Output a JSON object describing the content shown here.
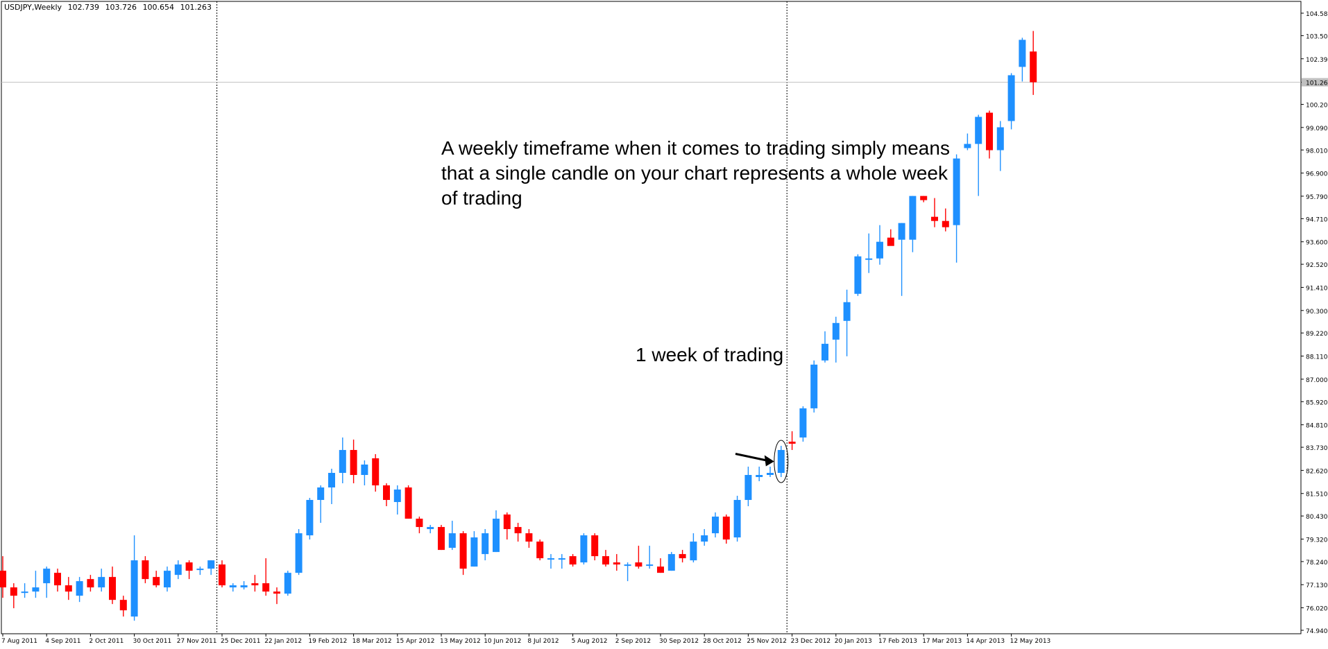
{
  "header": {
    "symbol": "USDJPY,Weekly",
    "open": "102.739",
    "high": "103.726",
    "low": "100.654",
    "close": "101.263"
  },
  "annotations": {
    "caption": "A weekly timeframe when it comes to trading simply means that a single candle on your chart represents a whole week of trading",
    "arrow_label": "1 week of trading"
  },
  "colors": {
    "bull": "#1e90ff",
    "bear": "#ff0000",
    "background": "#ffffff",
    "axis": "#000000",
    "current_price_line": "#c0c0c0"
  },
  "chart_data": {
    "type": "candlestick",
    "series_name": "USDJPY,Weekly",
    "ylim": [
      74.94,
      104.58
    ],
    "y_ticks": [
      "104.580",
      "103.500",
      "102.390",
      "101.263",
      "100.200",
      "99.090",
      "98.010",
      "96.900",
      "95.790",
      "94.710",
      "93.600",
      "92.520",
      "91.410",
      "90.300",
      "89.220",
      "88.110",
      "87.000",
      "85.920",
      "84.810",
      "83.730",
      "82.620",
      "81.510",
      "80.430",
      "79.320",
      "78.240",
      "77.130",
      "76.020",
      "74.940"
    ],
    "current_price": "101.263",
    "x_tick_labels": [
      "7 Aug 2011",
      "4 Sep 2011",
      "2 Oct 2011",
      "30 Oct 2011",
      "27 Nov 2011",
      "25 Dec 2011",
      "22 Jan 2012",
      "19 Feb 2012",
      "18 Mar 2012",
      "15 Apr 2012",
      "13 May 2012",
      "10 Jun 2012",
      "8 Jul 2012",
      "5 Aug 2012",
      "2 Sep 2012",
      "30 Sep 2012",
      "28 Oct 2012",
      "25 Nov 2012",
      "23 Dec 2012",
      "20 Jan 2013",
      "17 Feb 2013",
      "17 Mar 2013",
      "14 Apr 2013",
      "12 May 2013"
    ],
    "x_tick_label_step": 4,
    "period_separators": [
      "25 Dec 2011",
      "23 Dec 2012"
    ],
    "highlighted_candle": "23 Dec 2012",
    "candles": [
      {
        "o": 77.8,
        "h": 78.5,
        "l": 76.5,
        "c": 77.0
      },
      {
        "o": 77.0,
        "h": 77.2,
        "l": 76.0,
        "c": 76.6
      },
      {
        "o": 76.8,
        "h": 77.2,
        "l": 76.5,
        "c": 76.8
      },
      {
        "o": 76.8,
        "h": 77.8,
        "l": 76.5,
        "c": 77.0
      },
      {
        "o": 77.2,
        "h": 78.0,
        "l": 76.5,
        "c": 77.9
      },
      {
        "o": 77.7,
        "h": 77.9,
        "l": 76.8,
        "c": 77.1
      },
      {
        "o": 77.1,
        "h": 77.5,
        "l": 76.4,
        "c": 76.8
      },
      {
        "o": 76.6,
        "h": 77.5,
        "l": 76.3,
        "c": 77.3
      },
      {
        "o": 77.4,
        "h": 77.6,
        "l": 76.8,
        "c": 77.0
      },
      {
        "o": 77.0,
        "h": 77.9,
        "l": 76.8,
        "c": 77.5
      },
      {
        "o": 77.5,
        "h": 78.0,
        "l": 76.2,
        "c": 76.4
      },
      {
        "o": 76.4,
        "h": 76.6,
        "l": 75.6,
        "c": 75.9
      },
      {
        "o": 75.6,
        "h": 79.5,
        "l": 75.4,
        "c": 78.3
      },
      {
        "o": 78.3,
        "h": 78.5,
        "l": 77.2,
        "c": 77.4
      },
      {
        "o": 77.5,
        "h": 77.8,
        "l": 77.0,
        "c": 77.1
      },
      {
        "o": 77.0,
        "h": 78.0,
        "l": 76.8,
        "c": 77.8
      },
      {
        "o": 77.6,
        "h": 78.3,
        "l": 77.4,
        "c": 78.1
      },
      {
        "o": 78.2,
        "h": 78.3,
        "l": 77.4,
        "c": 77.8
      },
      {
        "o": 77.9,
        "h": 78.0,
        "l": 77.6,
        "c": 77.9
      },
      {
        "o": 77.9,
        "h": 78.3,
        "l": 77.6,
        "c": 78.3
      },
      {
        "o": 78.1,
        "h": 78.3,
        "l": 77.0,
        "c": 77.1
      },
      {
        "o": 77.0,
        "h": 77.2,
        "l": 76.8,
        "c": 77.1
      },
      {
        "o": 77.0,
        "h": 77.3,
        "l": 76.9,
        "c": 77.1
      },
      {
        "o": 77.2,
        "h": 77.6,
        "l": 76.8,
        "c": 77.1
      },
      {
        "o": 77.2,
        "h": 78.4,
        "l": 76.6,
        "c": 76.8
      },
      {
        "o": 76.8,
        "h": 77.0,
        "l": 76.2,
        "c": 76.7
      },
      {
        "o": 76.7,
        "h": 77.8,
        "l": 76.6,
        "c": 77.7
      },
      {
        "o": 77.7,
        "h": 79.8,
        "l": 77.6,
        "c": 79.6
      },
      {
        "o": 79.5,
        "h": 81.3,
        "l": 79.3,
        "c": 81.2
      },
      {
        "o": 81.2,
        "h": 81.9,
        "l": 80.1,
        "c": 81.8
      },
      {
        "o": 81.8,
        "h": 82.7,
        "l": 81.0,
        "c": 82.5
      },
      {
        "o": 82.5,
        "h": 84.2,
        "l": 82.0,
        "c": 83.6
      },
      {
        "o": 83.6,
        "h": 84.1,
        "l": 82.0,
        "c": 82.4
      },
      {
        "o": 82.4,
        "h": 83.1,
        "l": 81.9,
        "c": 82.9
      },
      {
        "o": 83.2,
        "h": 83.4,
        "l": 81.6,
        "c": 81.9
      },
      {
        "o": 81.9,
        "h": 82.0,
        "l": 80.9,
        "c": 81.2
      },
      {
        "o": 81.1,
        "h": 81.9,
        "l": 80.5,
        "c": 81.7
      },
      {
        "o": 81.8,
        "h": 81.9,
        "l": 80.3,
        "c": 80.3
      },
      {
        "o": 80.3,
        "h": 80.4,
        "l": 79.6,
        "c": 79.9
      },
      {
        "o": 79.8,
        "h": 80.0,
        "l": 79.6,
        "c": 79.9
      },
      {
        "o": 79.9,
        "h": 80.0,
        "l": 78.8,
        "c": 78.8
      },
      {
        "o": 78.9,
        "h": 80.2,
        "l": 78.8,
        "c": 79.6
      },
      {
        "o": 79.6,
        "h": 79.7,
        "l": 77.6,
        "c": 77.9
      },
      {
        "o": 78.0,
        "h": 79.7,
        "l": 78.0,
        "c": 79.4
      },
      {
        "o": 78.6,
        "h": 79.8,
        "l": 78.3,
        "c": 79.6
      },
      {
        "o": 78.7,
        "h": 80.7,
        "l": 78.7,
        "c": 80.3
      },
      {
        "o": 80.5,
        "h": 80.6,
        "l": 79.3,
        "c": 79.8
      },
      {
        "o": 79.9,
        "h": 80.1,
        "l": 79.2,
        "c": 79.6
      },
      {
        "o": 79.6,
        "h": 79.8,
        "l": 78.9,
        "c": 79.2
      },
      {
        "o": 79.2,
        "h": 79.3,
        "l": 78.3,
        "c": 78.4
      },
      {
        "o": 78.4,
        "h": 78.6,
        "l": 77.9,
        "c": 78.4
      },
      {
        "o": 78.4,
        "h": 78.6,
        "l": 77.9,
        "c": 78.4
      },
      {
        "o": 78.5,
        "h": 78.6,
        "l": 78.0,
        "c": 78.1
      },
      {
        "o": 78.2,
        "h": 79.6,
        "l": 78.1,
        "c": 79.5
      },
      {
        "o": 79.5,
        "h": 79.6,
        "l": 78.3,
        "c": 78.5
      },
      {
        "o": 78.5,
        "h": 78.8,
        "l": 78.0,
        "c": 78.1
      },
      {
        "o": 78.2,
        "h": 78.6,
        "l": 77.8,
        "c": 78.1
      },
      {
        "o": 78.1,
        "h": 78.2,
        "l": 77.3,
        "c": 78.1
      },
      {
        "o": 78.2,
        "h": 79.0,
        "l": 77.9,
        "c": 78.0
      },
      {
        "o": 78.1,
        "h": 79.0,
        "l": 77.9,
        "c": 78.1
      },
      {
        "o": 78.0,
        "h": 78.4,
        "l": 77.7,
        "c": 77.7
      },
      {
        "o": 77.8,
        "h": 78.7,
        "l": 77.8,
        "c": 78.6
      },
      {
        "o": 78.6,
        "h": 78.8,
        "l": 78.2,
        "c": 78.4
      },
      {
        "o": 78.3,
        "h": 79.6,
        "l": 78.2,
        "c": 79.2
      },
      {
        "o": 79.2,
        "h": 79.8,
        "l": 79.0,
        "c": 79.5
      },
      {
        "o": 79.6,
        "h": 80.6,
        "l": 79.4,
        "c": 80.4
      },
      {
        "o": 80.4,
        "h": 80.5,
        "l": 79.1,
        "c": 79.3
      },
      {
        "o": 79.4,
        "h": 81.4,
        "l": 79.2,
        "c": 81.2
      },
      {
        "o": 81.2,
        "h": 82.8,
        "l": 80.9,
        "c": 82.4
      },
      {
        "o": 82.3,
        "h": 82.8,
        "l": 82.1,
        "c": 82.4
      },
      {
        "o": 82.4,
        "h": 82.8,
        "l": 82.3,
        "c": 82.5
      },
      {
        "o": 82.5,
        "h": 83.8,
        "l": 82.3,
        "c": 83.6
      },
      {
        "o": 84.0,
        "h": 84.5,
        "l": 83.6,
        "c": 83.9
      },
      {
        "o": 84.2,
        "h": 85.7,
        "l": 84.0,
        "c": 85.6
      },
      {
        "o": 85.6,
        "h": 87.9,
        "l": 85.4,
        "c": 87.7
      },
      {
        "o": 87.9,
        "h": 89.3,
        "l": 87.8,
        "c": 88.7
      },
      {
        "o": 88.9,
        "h": 90.0,
        "l": 87.8,
        "c": 89.7
      },
      {
        "o": 89.8,
        "h": 91.3,
        "l": 88.1,
        "c": 90.7
      },
      {
        "o": 91.1,
        "h": 93.0,
        "l": 91.0,
        "c": 92.9
      },
      {
        "o": 92.8,
        "h": 94.0,
        "l": 92.1,
        "c": 92.8
      },
      {
        "o": 92.8,
        "h": 94.4,
        "l": 92.5,
        "c": 93.6
      },
      {
        "o": 93.8,
        "h": 94.2,
        "l": 93.6,
        "c": 93.4
      },
      {
        "o": 93.7,
        "h": 94.5,
        "l": 91.0,
        "c": 94.5
      },
      {
        "o": 93.7,
        "h": 95.8,
        "l": 93.1,
        "c": 95.8
      },
      {
        "o": 95.8,
        "h": 95.8,
        "l": 95.5,
        "c": 95.6
      },
      {
        "o": 94.8,
        "h": 95.7,
        "l": 94.3,
        "c": 94.6
      },
      {
        "o": 94.6,
        "h": 95.2,
        "l": 94.1,
        "c": 94.3
      },
      {
        "o": 94.4,
        "h": 97.8,
        "l": 92.6,
        "c": 97.6
      },
      {
        "o": 98.1,
        "h": 98.8,
        "l": 98.0,
        "c": 98.3
      },
      {
        "o": 98.3,
        "h": 99.7,
        "l": 95.8,
        "c": 99.6
      },
      {
        "o": 99.8,
        "h": 99.9,
        "l": 97.6,
        "c": 98.0
      },
      {
        "o": 98.0,
        "h": 99.4,
        "l": 97.0,
        "c": 99.1
      },
      {
        "o": 99.4,
        "h": 101.7,
        "l": 99.0,
        "c": 101.6
      },
      {
        "o": 102.0,
        "h": 103.4,
        "l": 101.3,
        "c": 103.3
      },
      {
        "o": 102.739,
        "h": 103.726,
        "l": 100.654,
        "c": 101.263
      }
    ]
  }
}
